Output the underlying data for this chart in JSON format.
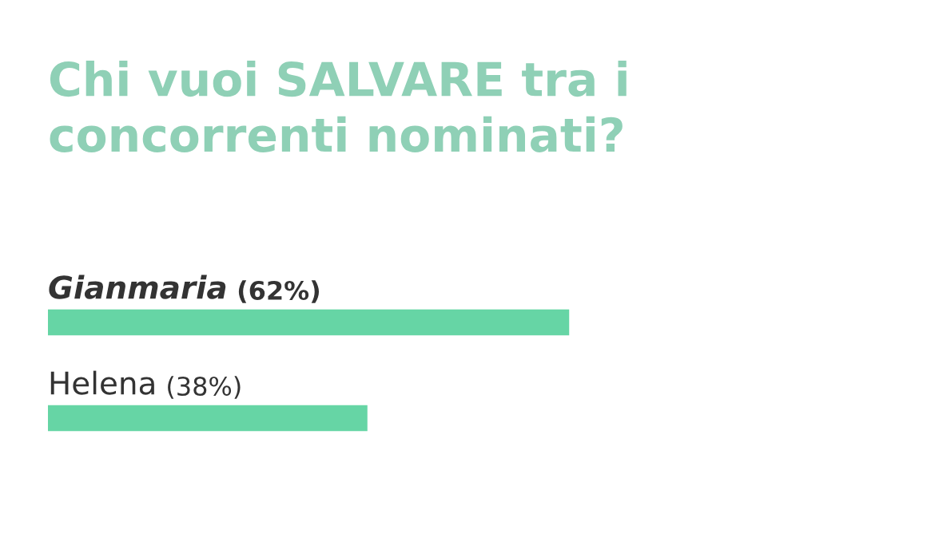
{
  "chart_data": {
    "type": "bar",
    "orientation": "horizontal",
    "title": "Chi vuoi SALVARE tra i concorrenti nominati?",
    "categories": [
      "Gianmaria",
      "Helena"
    ],
    "values": [
      62,
      38
    ],
    "value_labels": [
      "(62%)",
      "(38%)"
    ],
    "color": "#66d5a5",
    "tick_labels": "y"
  }
}
